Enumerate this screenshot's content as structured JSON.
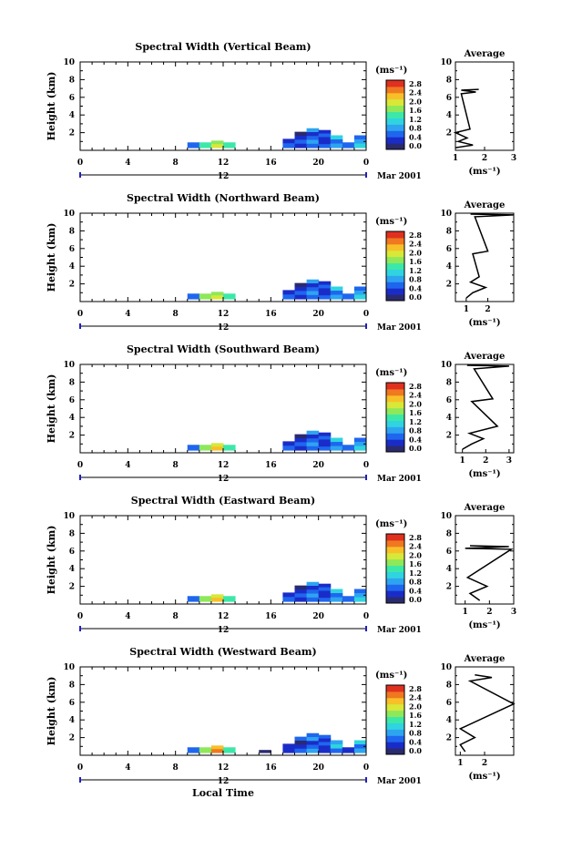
{
  "figure": {
    "xlabel_bottom": "Local Time",
    "date_label": "Mar 2001",
    "day_label": "12",
    "colorbar_unit": "(ms⁻¹)",
    "colorbar_ticks": [
      "0.0",
      "0.4",
      "0.8",
      "1.2",
      "1.6",
      "2.0",
      "2.4",
      "2.8"
    ],
    "avg_title": "Average",
    "avg_xlabel": "(ms⁻¹)",
    "ylabel": "Height (km)",
    "colors": {
      "scale": [
        "#2a2a6e",
        "#1a2cc8",
        "#1f66ef",
        "#2ea4f0",
        "#2fd4e0",
        "#3ce8a8",
        "#8ee85a",
        "#d8e838",
        "#f8c028",
        "#f07820",
        "#e03020"
      ]
    }
  },
  "chart_data": [
    {
      "type": "heatmap",
      "title": "Spectral Width (Vertical Beam)",
      "x": [
        0,
        4,
        8,
        12,
        16,
        20,
        24
      ],
      "x_ticks": [
        "0",
        "4",
        "8",
        "12",
        "16",
        "20",
        "0"
      ],
      "xlim": [
        0,
        24
      ],
      "ylim": [
        0,
        10
      ],
      "y_ticks": [
        "2",
        "4",
        "6",
        "8",
        "10"
      ],
      "clim": [
        0,
        2.8
      ],
      "cells": [
        [
          9,
          0.6,
          0.9
        ],
        [
          10,
          0.6,
          1.4
        ],
        [
          11,
          0.8,
          1.9
        ],
        [
          12,
          0.6,
          1.1
        ],
        [
          17,
          1.0,
          0.5
        ],
        [
          18,
          1.8,
          0.4
        ],
        [
          19,
          2.2,
          0.7
        ],
        [
          20,
          2.0,
          0.5
        ],
        [
          21,
          1.4,
          0.8
        ],
        [
          22,
          0.6,
          0.6
        ],
        [
          23,
          1.4,
          1.0
        ]
      ],
      "avg": {
        "xlim": [
          1,
          3
        ],
        "x_ticks": [
          "1",
          "2",
          "3"
        ],
        "x": [
          1.0,
          1.6,
          1.1,
          1.4,
          1.0,
          1.5,
          1.2,
          1.7,
          1.2,
          1.8
        ],
        "y": [
          0.3,
          0.6,
          1.0,
          1.4,
          2.0,
          2.4,
          6.4,
          6.6,
          6.8,
          6.9
        ]
      }
    },
    {
      "type": "heatmap",
      "title": "Spectral Width (Northward Beam)",
      "x": [
        0,
        4,
        8,
        12,
        16,
        20,
        24
      ],
      "x_ticks": [
        "0",
        "4",
        "8",
        "12",
        "16",
        "20",
        "0"
      ],
      "xlim": [
        0,
        24
      ],
      "ylim": [
        0,
        10
      ],
      "y_ticks": [
        "2",
        "4",
        "6",
        "8",
        "10"
      ],
      "clim": [
        0,
        2.8
      ],
      "cells": [
        [
          9,
          0.6,
          0.9
        ],
        [
          10,
          0.6,
          1.5
        ],
        [
          11,
          0.8,
          1.9
        ],
        [
          12,
          0.6,
          1.1
        ],
        [
          17,
          1.0,
          0.5
        ],
        [
          18,
          1.8,
          0.4
        ],
        [
          19,
          2.2,
          0.7
        ],
        [
          20,
          2.0,
          0.5
        ],
        [
          21,
          1.4,
          0.8
        ],
        [
          22,
          0.6,
          0.6
        ],
        [
          23,
          1.4,
          1.0
        ]
      ],
      "avg": {
        "xlim": [
          0.5,
          3.2
        ],
        "x_ticks": [
          "1",
          "2"
        ],
        "x": [
          1.0,
          1.3,
          1.9,
          1.2,
          1.6,
          1.3,
          2.0,
          1.4,
          3.2,
          1.2
        ],
        "y": [
          0.4,
          1.0,
          1.6,
          2.2,
          2.8,
          5.4,
          5.7,
          9.6,
          9.8,
          9.9
        ]
      }
    },
    {
      "type": "heatmap",
      "title": "Spectral Width (Southward Beam)",
      "x": [
        0,
        4,
        8,
        12,
        16,
        20,
        24
      ],
      "x_ticks": [
        "0",
        "4",
        "8",
        "12",
        "16",
        "20",
        "0"
      ],
      "xlim": [
        0,
        24
      ],
      "ylim": [
        0,
        10
      ],
      "y_ticks": [
        "2",
        "4",
        "6",
        "8",
        "10"
      ],
      "clim": [
        0,
        2.8
      ],
      "cells": [
        [
          9,
          0.6,
          0.9
        ],
        [
          10,
          0.6,
          1.5
        ],
        [
          11,
          0.8,
          2.1
        ],
        [
          12,
          0.6,
          1.1
        ],
        [
          17,
          1.0,
          0.5
        ],
        [
          18,
          1.8,
          0.4
        ],
        [
          19,
          2.2,
          0.7
        ],
        [
          20,
          2.0,
          0.5
        ],
        [
          21,
          1.4,
          0.8
        ],
        [
          22,
          0.6,
          0.6
        ],
        [
          23,
          1.4,
          1.0
        ]
      ],
      "avg": {
        "xlim": [
          0.7,
          3.2
        ],
        "x_ticks": [
          "1",
          "2",
          "3"
        ],
        "x": [
          1.0,
          1.4,
          1.9,
          1.3,
          2.5,
          1.4,
          2.3,
          1.5,
          3.0,
          1.2
        ],
        "y": [
          0.4,
          1.0,
          1.6,
          2.2,
          3.0,
          5.8,
          6.1,
          9.5,
          9.8,
          9.9
        ]
      }
    },
    {
      "type": "heatmap",
      "title": "Spectral Width (Eastward Beam)",
      "x": [
        0,
        4,
        8,
        12,
        16,
        20,
        24
      ],
      "x_ticks": [
        "0",
        "4",
        "8",
        "12",
        "16",
        "20",
        "0"
      ],
      "xlim": [
        0,
        24
      ],
      "ylim": [
        0,
        10
      ],
      "y_ticks": [
        "2",
        "4",
        "6",
        "8",
        "10"
      ],
      "clim": [
        0,
        2.8
      ],
      "cells": [
        [
          9,
          0.6,
          0.9
        ],
        [
          10,
          0.6,
          1.5
        ],
        [
          11,
          0.8,
          2.0
        ],
        [
          12,
          0.6,
          1.1
        ],
        [
          17,
          1.0,
          0.5
        ],
        [
          18,
          1.8,
          0.4
        ],
        [
          19,
          2.2,
          0.7
        ],
        [
          20,
          2.0,
          0.5
        ],
        [
          21,
          1.4,
          0.8
        ],
        [
          22,
          0.6,
          0.6
        ],
        [
          23,
          1.4,
          1.0
        ]
      ],
      "avg": {
        "xlim": [
          0.6,
          3.0
        ],
        "x_ticks": [
          "1",
          "2",
          "3"
        ],
        "x": [
          1.6,
          1.2,
          1.9,
          1.1,
          2.9,
          1.0,
          2.8,
          1.2
        ],
        "y": [
          0.4,
          1.2,
          2.0,
          3.0,
          6.2,
          6.3,
          6.5,
          6.6
        ]
      }
    },
    {
      "type": "heatmap",
      "title": "Spectral Width (Westward Beam)",
      "x": [
        0,
        4,
        8,
        12,
        16,
        20,
        24
      ],
      "x_ticks": [
        "0",
        "4",
        "8",
        "12",
        "16",
        "20",
        "0"
      ],
      "xlim": [
        0,
        24
      ],
      "ylim": [
        0,
        10
      ],
      "y_ticks": [
        "2",
        "4",
        "6",
        "8",
        "10"
      ],
      "clim": [
        0,
        2.8
      ],
      "cells": [
        [
          9,
          0.6,
          0.9
        ],
        [
          10,
          0.6,
          1.5
        ],
        [
          11,
          0.8,
          2.2
        ],
        [
          12,
          0.6,
          1.1
        ],
        [
          15,
          0.3,
          0.2
        ],
        [
          17,
          1.0,
          0.5
        ],
        [
          18,
          1.8,
          0.4
        ],
        [
          19,
          2.2,
          0.7
        ],
        [
          20,
          2.0,
          0.5
        ],
        [
          21,
          1.4,
          0.8
        ],
        [
          22,
          0.6,
          0.6
        ],
        [
          23,
          1.4,
          1.0
        ]
      ],
      "avg": {
        "xlim": [
          0.8,
          3.2
        ],
        "x_ticks": [
          "1",
          "2"
        ],
        "x": [
          1.2,
          1.0,
          1.6,
          1.0,
          3.2,
          1.4,
          2.3,
          1.6
        ],
        "y": [
          0.4,
          1.2,
          2.0,
          3.0,
          5.8,
          8.4,
          8.8,
          9.1
        ]
      }
    }
  ]
}
